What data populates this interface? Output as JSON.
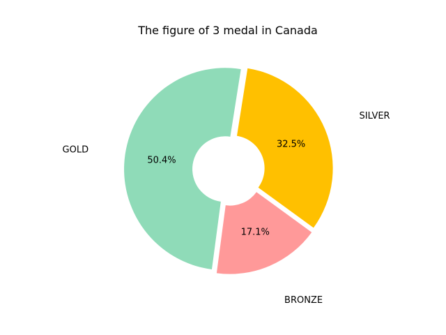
{
  "chart_data": {
    "type": "pie",
    "title": "The figure of 3 medal in Canada",
    "style": "donut",
    "slices": [
      {
        "label": "GOLD",
        "percent": 50.4,
        "percent_label": "50.4%",
        "color": "#8fdbb8"
      },
      {
        "label": "BRONZE",
        "percent": 17.1,
        "percent_label": "17.1%",
        "color": "#ff9999"
      },
      {
        "label": "SILVER",
        "percent": 32.5,
        "percent_label": "32.5%",
        "color": "#ffc000"
      }
    ]
  }
}
